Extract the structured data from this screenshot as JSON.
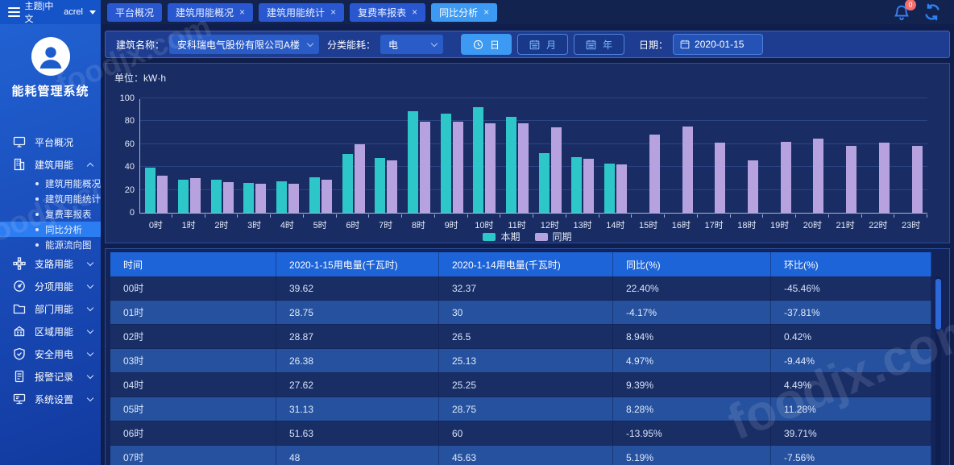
{
  "topbar": {
    "menu_label": "主题|中文",
    "user": "acrel",
    "notification_count": "0",
    "tabs": [
      {
        "label": "平台概况",
        "closable": false,
        "active": false
      },
      {
        "label": "建筑用能概况",
        "closable": true,
        "active": false
      },
      {
        "label": "建筑用能统计",
        "closable": true,
        "active": false
      },
      {
        "label": "复费率报表",
        "closable": true,
        "active": false
      },
      {
        "label": "同比分析",
        "closable": true,
        "active": true
      }
    ]
  },
  "sidebar": {
    "title": "能耗管理系统",
    "items": [
      {
        "label": "平台概况",
        "icon": "monitor-icon",
        "chevron": false
      },
      {
        "label": "建筑用能",
        "icon": "building-icon",
        "chevron": true,
        "expanded": true,
        "children": [
          "建筑用能概况",
          "建筑用能统计",
          "复费率报表",
          "同比分析",
          "能源流向图"
        ],
        "active_child": "同比分析"
      },
      {
        "label": "支路用能",
        "icon": "branch-icon",
        "chevron": true
      },
      {
        "label": "分项用能",
        "icon": "gauge-icon",
        "chevron": true
      },
      {
        "label": "部门用能",
        "icon": "folder-icon",
        "chevron": true
      },
      {
        "label": "区域用能",
        "icon": "region-icon",
        "chevron": true
      },
      {
        "label": "安全用电",
        "icon": "shield-icon",
        "chevron": true
      },
      {
        "label": "报警记录",
        "icon": "report-icon",
        "chevron": true
      },
      {
        "label": "系统设置",
        "icon": "settings-icon",
        "chevron": true
      }
    ]
  },
  "filters": {
    "building_label": "建筑名称：",
    "building_value": "安科瑞电气股份有限公司A楼",
    "energy_label": "分类能耗：",
    "energy_value": "电",
    "period_buttons": [
      {
        "label": "日",
        "icon": "clock-icon",
        "active": true
      },
      {
        "label": "月",
        "icon": "calendar-icon",
        "active": false
      },
      {
        "label": "年",
        "icon": "calendar-icon",
        "active": false
      }
    ],
    "date_label": "日期：",
    "date_value": "2020-01-15"
  },
  "chart_data": {
    "type": "bar",
    "unit_label": "单位：kW·h",
    "categories": [
      "0时",
      "1时",
      "2时",
      "3时",
      "4时",
      "5时",
      "6时",
      "7时",
      "8时",
      "9时",
      "10时",
      "11时",
      "12时",
      "13时",
      "14时",
      "15时",
      "16时",
      "17时",
      "18时",
      "19时",
      "20时",
      "21时",
      "22时",
      "23时"
    ],
    "series": [
      {
        "name": "本期",
        "color": "#2ec7c9",
        "values": [
          39.62,
          28.75,
          28.87,
          26.38,
          27.62,
          31.13,
          51.63,
          48,
          89,
          86.5,
          92.5,
          84,
          52,
          48.5,
          43,
          null,
          null,
          null,
          null,
          null,
          null,
          null,
          null,
          null
        ]
      },
      {
        "name": "同期",
        "color": "#b6a2de",
        "values": [
          32.37,
          30,
          26.5,
          25.13,
          25.25,
          28.75,
          60,
          45.63,
          79.5,
          79.5,
          78.5,
          78.5,
          74.5,
          47,
          42,
          68,
          75.5,
          61.5,
          46,
          62,
          65,
          58.5,
          61,
          58.5
        ]
      }
    ],
    "ylim": [
      0,
      100
    ],
    "yticks": [
      0,
      20,
      40,
      60,
      80,
      100
    ],
    "grid": true,
    "legend_position": "bottom"
  },
  "table": {
    "headers": [
      "时间",
      "2020-1-15用电量(千瓦时)",
      "2020-1-14用电量(千瓦时)",
      "同比(%)",
      "环比(%)"
    ],
    "rows": [
      [
        "00时",
        "39.62",
        "32.37",
        "22.40%",
        "-45.46%"
      ],
      [
        "01时",
        "28.75",
        "30",
        "-4.17%",
        "-37.81%"
      ],
      [
        "02时",
        "28.87",
        "26.5",
        "8.94%",
        "0.42%"
      ],
      [
        "03时",
        "26.38",
        "25.13",
        "4.97%",
        "-9.44%"
      ],
      [
        "04时",
        "27.62",
        "25.25",
        "9.39%",
        "4.49%"
      ],
      [
        "05时",
        "31.13",
        "28.75",
        "8.28%",
        "11.28%"
      ],
      [
        "06时",
        "51.63",
        "60",
        "-13.95%",
        "39.71%"
      ],
      [
        "07时",
        "48",
        "45.63",
        "5.19%",
        "-7.56%"
      ]
    ]
  },
  "watermark": "foodjx.com"
}
